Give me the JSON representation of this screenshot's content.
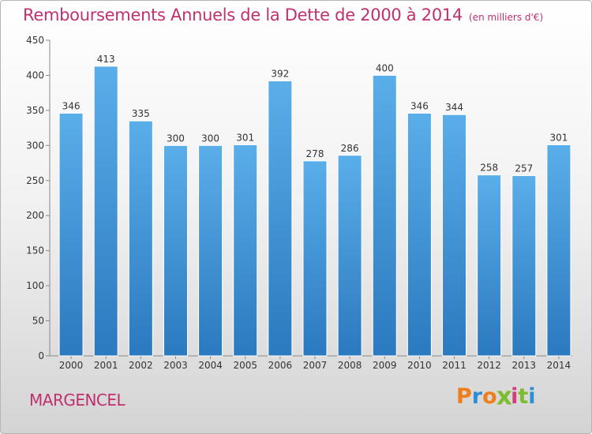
{
  "header": {
    "title": "Remboursements Annuels de la Dette de 2000 à 2014",
    "subtitle": "(en milliers d'€)"
  },
  "footer": {
    "place": "MARGENCEL",
    "brand": "Proxiti"
  },
  "colors": {
    "title": "#c0306e",
    "bar_top": "#5aaee9",
    "bar_bottom": "#2b79bf",
    "axis": "#888888",
    "brand_letters": [
      "#ef7d1a",
      "#2c8fd6",
      "#ef7d1a",
      "#7cbc2e",
      "#d63c78",
      "#7cbc2e",
      "#2c8fd6"
    ]
  },
  "chart_data": {
    "type": "bar",
    "title": "Remboursements Annuels de la Dette de 2000 à 2014",
    "ylabel": "en milliers d'€",
    "xlabel": "",
    "categories": [
      "2000",
      "2001",
      "2002",
      "2003",
      "2004",
      "2005",
      "2006",
      "2007",
      "2008",
      "2009",
      "2010",
      "2011",
      "2012",
      "2013",
      "2014"
    ],
    "values": [
      346,
      413,
      335,
      300,
      300,
      301,
      392,
      278,
      286,
      400,
      346,
      344,
      258,
      257,
      301
    ],
    "ylim": [
      0,
      450
    ],
    "yticks": [
      0,
      50,
      100,
      150,
      200,
      250,
      300,
      350,
      400,
      450
    ],
    "grid": false,
    "data_labels": true
  }
}
